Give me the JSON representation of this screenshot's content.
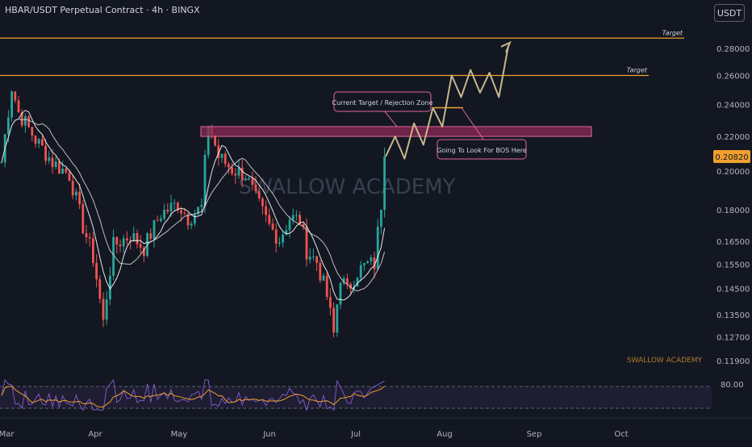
{
  "header": {
    "title": "HBAR/USDT Perpetual Contract · 4h · BINGX",
    "currency_button": "USDT"
  },
  "colors": {
    "background": "#131722",
    "up": "#26a69a",
    "down": "#ef5350",
    "target_line": "#f0a02e",
    "zone_fill": "#8c2a55",
    "zone_stroke": "#e0679a",
    "projection": "#c8b78a",
    "rsi": "#7e57c2",
    "rsi_ma": "#f0a02e",
    "ma_short": "#ffffff",
    "ma_long": "#d0d0d0",
    "price_label": "#f0a02e"
  },
  "chart_data": {
    "type": "candlestick",
    "symbol": "HBAR/USDT",
    "timeframe": "4h",
    "exchange": "BINGX",
    "y_axis": {
      "scale": "log",
      "ticks": [
        "0.28000",
        "0.26000",
        "0.24000",
        "0.22000",
        "0.20000",
        "0.18000",
        "0.16500",
        "0.15500",
        "0.14500",
        "0.13500",
        "0.12700",
        "0.11900"
      ],
      "range": [
        0.113,
        0.3
      ]
    },
    "x_axis": {
      "ticks": [
        "Mar",
        "Apr",
        "May",
        "Jun",
        "Jul",
        "Aug",
        "Sep",
        "Oct"
      ]
    },
    "current_price": "0.20820",
    "price_path": [
      [
        0,
        0.205
      ],
      [
        3,
        0.252
      ],
      [
        5,
        0.235
      ],
      [
        10,
        0.218
      ],
      [
        15,
        0.205
      ],
      [
        20,
        0.198
      ],
      [
        24,
        0.172
      ],
      [
        27,
        0.158
      ],
      [
        30,
        0.132
      ],
      [
        33,
        0.163
      ],
      [
        38,
        0.168
      ],
      [
        42,
        0.162
      ],
      [
        47,
        0.178
      ],
      [
        52,
        0.183
      ],
      [
        55,
        0.176
      ],
      [
        59,
        0.181
      ],
      [
        61,
        0.228
      ],
      [
        64,
        0.208
      ],
      [
        68,
        0.201
      ],
      [
        72,
        0.198
      ],
      [
        75,
        0.185
      ],
      [
        79,
        0.172
      ],
      [
        82,
        0.166
      ],
      [
        85,
        0.176
      ],
      [
        88,
        0.175
      ],
      [
        90,
        0.161
      ],
      [
        93,
        0.156
      ],
      [
        96,
        0.142
      ],
      [
        98,
        0.128
      ],
      [
        100,
        0.15
      ],
      [
        102,
        0.144
      ],
      [
        105,
        0.152
      ],
      [
        108,
        0.155
      ],
      [
        110,
        0.155
      ],
      [
        112,
        0.183
      ],
      [
        113,
        0.2082
      ]
    ],
    "annotations": {
      "targets": [
        {
          "price": 0.288,
          "label": "Target"
        },
        {
          "price": 0.26,
          "label": "Target"
        }
      ],
      "rejection_zone": {
        "low": 0.22,
        "high": 0.226,
        "label": "Current Target / Rejection Zone"
      },
      "bos_level": {
        "price": 0.238,
        "label": "Going To Look For BOS Here"
      },
      "projection": [
        0.2082,
        0.22,
        0.207,
        0.228,
        0.215,
        0.238,
        0.226,
        0.26,
        0.245,
        0.264,
        0.248,
        0.262,
        0.245,
        0.282
      ],
      "watermark": "SWALLOW ACADEMY",
      "corner_watermark": "SWALLOW ACADEMY"
    },
    "rsi": {
      "level_label": "80.00",
      "upper": 80,
      "lower": 20
    }
  }
}
